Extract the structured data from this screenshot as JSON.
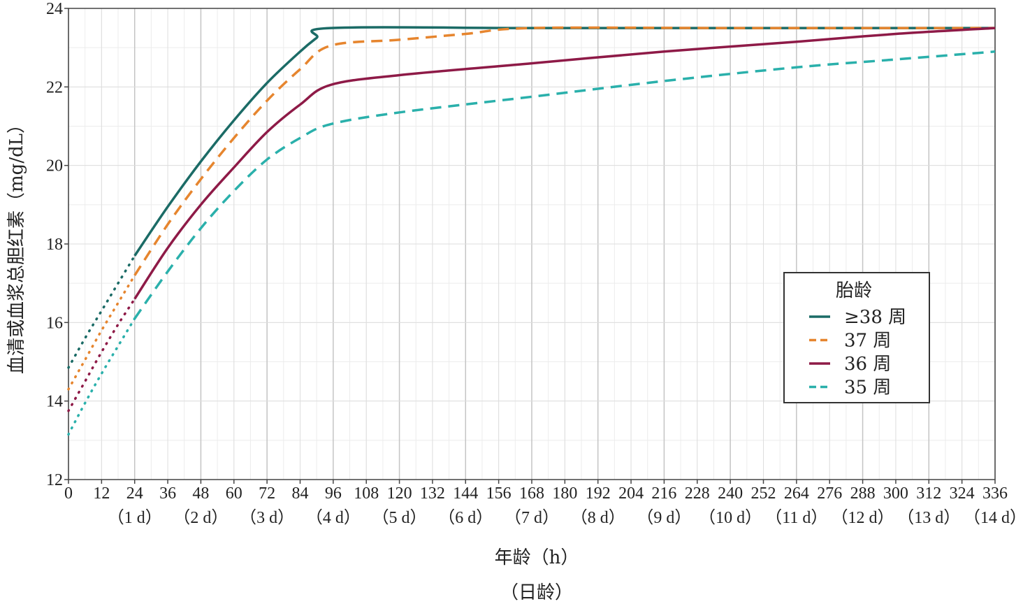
{
  "chart_data": {
    "type": "line",
    "xlabel": "年龄（h）",
    "xlabel2": "（日龄）",
    "ylabel": "血清或血浆总胆红素（mg/dL）",
    "xlim": [
      0,
      336
    ],
    "ylim": [
      12,
      24
    ],
    "x_ticks": [
      0,
      12,
      24,
      36,
      48,
      60,
      72,
      84,
      96,
      108,
      120,
      132,
      144,
      156,
      168,
      180,
      192,
      204,
      216,
      228,
      240,
      252,
      264,
      276,
      288,
      300,
      312,
      324,
      336
    ],
    "y_ticks": [
      12,
      14,
      16,
      18,
      20,
      22,
      24
    ],
    "day_ticks": [
      {
        "x": 24,
        "label": "（1 d）"
      },
      {
        "x": 48,
        "label": "（2 d）"
      },
      {
        "x": 72,
        "label": "（3 d）"
      },
      {
        "x": 96,
        "label": "（4 d）"
      },
      {
        "x": 120,
        "label": "（5 d）"
      },
      {
        "x": 144,
        "label": "（6 d）"
      },
      {
        "x": 168,
        "label": "（7 d）"
      },
      {
        "x": 192,
        "label": "（8 d）"
      },
      {
        "x": 216,
        "label": "（9 d）"
      },
      {
        "x": 240,
        "label": "（10 d）"
      },
      {
        "x": 264,
        "label": "（11 d）"
      },
      {
        "x": 288,
        "label": "（12 d）"
      },
      {
        "x": 312,
        "label": "（13 d）"
      },
      {
        "x": 336,
        "label": "（14 d）"
      }
    ],
    "grid": true,
    "legend_title": "胎龄",
    "legend_position": "right",
    "series": [
      {
        "name": "≥38 周",
        "color": "#1b6b66",
        "dash": "solid",
        "dotted_segment": [
          [
            0,
            14.85
          ],
          [
            6,
            15.6
          ],
          [
            12,
            16.3
          ],
          [
            18,
            17.0
          ],
          [
            24,
            17.7
          ]
        ],
        "points": [
          [
            24,
            17.7
          ],
          [
            36,
            18.95
          ],
          [
            48,
            20.1
          ],
          [
            60,
            21.15
          ],
          [
            72,
            22.1
          ],
          [
            84,
            22.9
          ],
          [
            90,
            23.25
          ],
          [
            95,
            23.5
          ],
          [
            168,
            23.5
          ],
          [
            240,
            23.5
          ],
          [
            336,
            23.5
          ]
        ]
      },
      {
        "name": "37 周",
        "color": "#e6852e",
        "dash": "dashed",
        "dotted_segment": [
          [
            0,
            14.3
          ],
          [
            6,
            15.05
          ],
          [
            12,
            15.8
          ],
          [
            18,
            16.5
          ],
          [
            24,
            17.2
          ]
        ],
        "points": [
          [
            24,
            17.2
          ],
          [
            36,
            18.5
          ],
          [
            48,
            19.65
          ],
          [
            60,
            20.7
          ],
          [
            72,
            21.65
          ],
          [
            84,
            22.45
          ],
          [
            95,
            23.05
          ],
          [
            120,
            23.2
          ],
          [
            144,
            23.35
          ],
          [
            168,
            23.5
          ],
          [
            240,
            23.5
          ],
          [
            336,
            23.5
          ]
        ]
      },
      {
        "name": "36 周",
        "color": "#8e1a47",
        "dash": "solid",
        "dotted_segment": [
          [
            0,
            13.75
          ],
          [
            6,
            14.5
          ],
          [
            12,
            15.25
          ],
          [
            18,
            15.95
          ],
          [
            24,
            16.6
          ]
        ],
        "points": [
          [
            24,
            16.6
          ],
          [
            36,
            17.9
          ],
          [
            48,
            19.0
          ],
          [
            60,
            19.95
          ],
          [
            72,
            20.85
          ],
          [
            84,
            21.55
          ],
          [
            95,
            22.05
          ],
          [
            120,
            22.3
          ],
          [
            168,
            22.6
          ],
          [
            216,
            22.9
          ],
          [
            264,
            23.15
          ],
          [
            300,
            23.35
          ],
          [
            336,
            23.5
          ]
        ]
      },
      {
        "name": "35 周",
        "color": "#2ab0ab",
        "dash": "dashed",
        "dotted_segment": [
          [
            0,
            13.15
          ],
          [
            6,
            13.95
          ],
          [
            12,
            14.7
          ],
          [
            18,
            15.4
          ],
          [
            24,
            16.1
          ]
        ],
        "points": [
          [
            24,
            16.1
          ],
          [
            36,
            17.3
          ],
          [
            48,
            18.4
          ],
          [
            60,
            19.35
          ],
          [
            72,
            20.15
          ],
          [
            84,
            20.7
          ],
          [
            95,
            21.05
          ],
          [
            120,
            21.35
          ],
          [
            168,
            21.75
          ],
          [
            216,
            22.15
          ],
          [
            264,
            22.5
          ],
          [
            300,
            22.7
          ],
          [
            336,
            22.9
          ]
        ]
      }
    ]
  }
}
